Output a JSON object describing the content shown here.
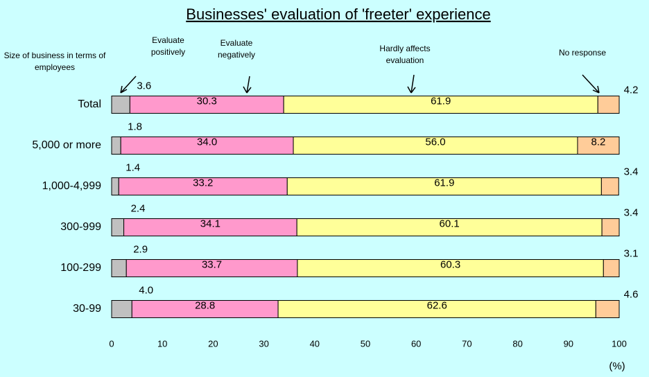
{
  "chart_data": {
    "type": "stacked_barh",
    "title": "Businesses' evaluation of 'freeter' experience",
    "category_axis_label": "Size of business in terms of employees",
    "x_axis_label": "(%)",
    "categories": [
      "Total",
      "5,000 or more",
      "1,000-4,999",
      "300-999",
      "100-299",
      "30-99"
    ],
    "series": [
      {
        "name": "Evaluate positively",
        "color": "#c0c0c0",
        "values": [
          3.6,
          1.8,
          1.4,
          2.4,
          2.9,
          4.0
        ],
        "value_labels": [
          "3.6",
          "1.8",
          "1.4",
          "2.4",
          "2.9",
          "4.0"
        ]
      },
      {
        "name": "Evaluate negatively",
        "color": "#ff99cc",
        "values": [
          30.3,
          34.0,
          33.2,
          34.1,
          33.7,
          28.8
        ],
        "value_labels": [
          "30.3",
          "34.0",
          "33.2",
          "34.1",
          "33.7",
          "28.8"
        ]
      },
      {
        "name": "Hardly affects evaluation",
        "color": "#ffff99",
        "values": [
          61.9,
          56.0,
          61.9,
          60.1,
          60.3,
          62.6
        ],
        "value_labels": [
          "61.9",
          "56.0",
          "61.9",
          "60.1",
          "60.3",
          "62.6"
        ]
      },
      {
        "name": "No response",
        "color": "#ffcc99",
        "values": [
          4.2,
          8.2,
          3.4,
          3.4,
          3.1,
          4.6
        ],
        "value_labels": [
          "4.2",
          "8.2",
          "3.4",
          "3.4",
          "3.1",
          "4.6"
        ]
      }
    ],
    "xlim": [
      0,
      100
    ],
    "xticks": [
      0,
      10,
      20,
      30,
      40,
      50,
      60,
      70,
      80,
      90,
      100
    ]
  }
}
